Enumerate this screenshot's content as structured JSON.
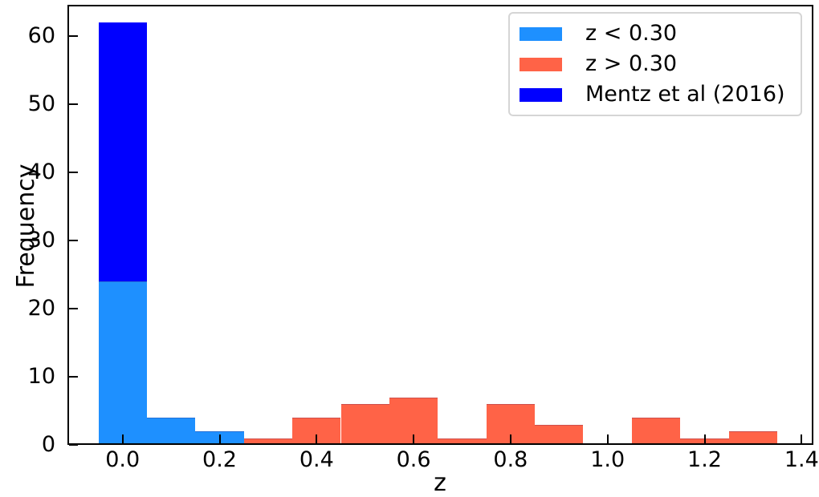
{
  "chart_data": {
    "type": "bar",
    "subtype": "stacked-histogram",
    "title": "",
    "xlabel": "z",
    "ylabel": "Frequency",
    "xlim": [
      -0.112,
      1.421
    ],
    "ylim": [
      0,
      64.4
    ],
    "bin_width": 0.1,
    "grid": false,
    "x_ticks": [
      0.0,
      0.2,
      0.4,
      0.6,
      0.8,
      1.0,
      1.2,
      1.4
    ],
    "x_tick_labels": [
      "0.0",
      "0.2",
      "0.4",
      "0.6",
      "0.8",
      "1.0",
      "1.2",
      "1.4"
    ],
    "y_ticks": [
      0,
      10,
      20,
      30,
      40,
      50,
      60
    ],
    "y_tick_labels": [
      "0",
      "10",
      "20",
      "30",
      "40",
      "50",
      "60"
    ],
    "series": [
      {
        "name": "z < 0.30",
        "color": "#1E90FF",
        "edged": true,
        "bins": [
          {
            "start": -0.05,
            "end": 0.05,
            "base": 0,
            "count": 24
          },
          {
            "start": 0.05,
            "end": 0.15,
            "base": 0,
            "count": 4
          },
          {
            "start": 0.15,
            "end": 0.25,
            "base": 0,
            "count": 2
          }
        ]
      },
      {
        "name": "z > 0.30",
        "color": "#FF6347",
        "edged": true,
        "bins": [
          {
            "start": 0.25,
            "end": 0.35,
            "base": 0,
            "count": 1
          },
          {
            "start": 0.35,
            "end": 0.45,
            "base": 0,
            "count": 4
          },
          {
            "start": 0.45,
            "end": 0.55,
            "base": 0,
            "count": 6
          },
          {
            "start": 0.55,
            "end": 0.65,
            "base": 0,
            "count": 7
          },
          {
            "start": 0.65,
            "end": 0.75,
            "base": 0,
            "count": 1
          },
          {
            "start": 0.75,
            "end": 0.85,
            "base": 0,
            "count": 6
          },
          {
            "start": 0.85,
            "end": 0.95,
            "base": 0,
            "count": 3
          },
          {
            "start": 0.95,
            "end": 1.05,
            "base": 0,
            "count": 0
          },
          {
            "start": 1.05,
            "end": 1.15,
            "base": 0,
            "count": 4
          },
          {
            "start": 1.15,
            "end": 1.25,
            "base": 0,
            "count": 1
          },
          {
            "start": 1.25,
            "end": 1.35,
            "base": 0,
            "count": 2
          }
        ]
      },
      {
        "name": "Mentz et al (2016)",
        "color": "#0000FF",
        "edged": false,
        "bins": [
          {
            "start": -0.05,
            "end": 0.05,
            "base": 24,
            "count": 38
          }
        ]
      }
    ],
    "legend": {
      "position": "upper right",
      "items": [
        {
          "label": "z < 0.30",
          "color": "#1E90FF"
        },
        {
          "label": "z > 0.30",
          "color": "#FF6347"
        },
        {
          "label": "Mentz et al (2016)",
          "color": "#0000FF"
        }
      ]
    }
  }
}
